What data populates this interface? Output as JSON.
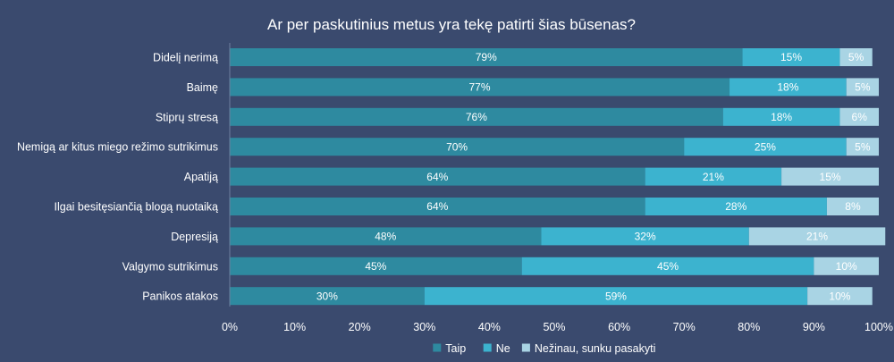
{
  "chart_data": {
    "type": "bar",
    "orientation": "horizontal",
    "stacked": "percent",
    "title": "Ar per paskutinius metus yra tekę patirti šias būsenas?",
    "categories": [
      "Didelį nerimą",
      "Baimę",
      "Stiprų stresą",
      "Nemigą ar kitus miego režimo sutrikimus",
      "Apatiją",
      "Ilgai besitęsiančią blogą nuotaiką",
      "Depresiją",
      "Valgymo sutrikimus",
      "Panikos atakos"
    ],
    "series": [
      {
        "name": "Taip",
        "color": "#2e8aa0",
        "values": [
          79,
          77,
          76,
          70,
          64,
          64,
          48,
          45,
          30
        ]
      },
      {
        "name": "Ne",
        "color": "#3cb3cf",
        "values": [
          15,
          18,
          18,
          25,
          21,
          28,
          32,
          45,
          59
        ]
      },
      {
        "name": "Nežinau, sunku pasakyti",
        "color": "#a9d4e4",
        "values": [
          5,
          5,
          6,
          5,
          15,
          8,
          21,
          10,
          10
        ]
      }
    ],
    "xlim": [
      0,
      100
    ],
    "xticks": [
      "0%",
      "10%",
      "20%",
      "30%",
      "40%",
      "50%",
      "60%",
      "70%",
      "80%",
      "90%",
      "100%"
    ],
    "value_suffix": "%",
    "legend": "bottom",
    "grid": false
  }
}
